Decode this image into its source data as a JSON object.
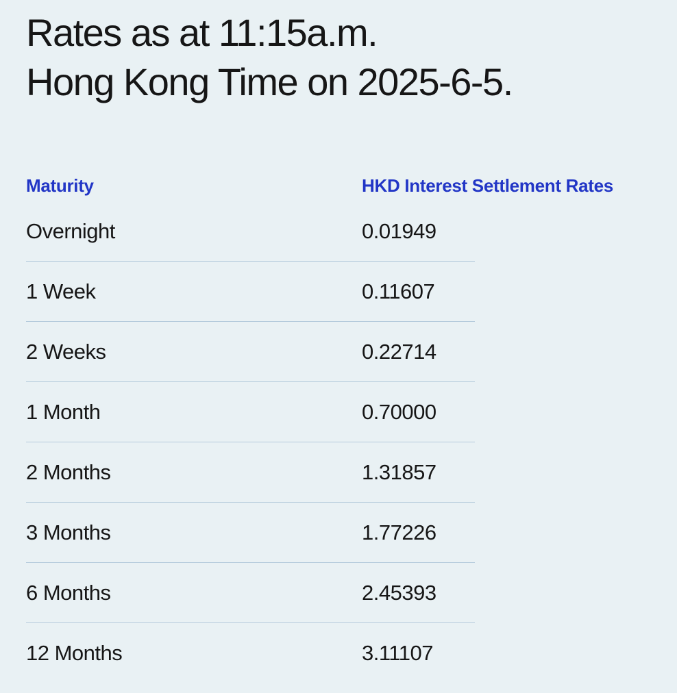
{
  "page": {
    "title": {
      "line1": "Rates as at 11:15a.m.",
      "line2": "Hong Kong Time on 2025-6-5."
    }
  },
  "table": {
    "columns": {
      "maturity": "Maturity",
      "rate": "HKD Interest Settlement Rates"
    },
    "rows": [
      {
        "maturity": "Overnight",
        "rate": "0.01949"
      },
      {
        "maturity": "1 Week",
        "rate": "0.11607"
      },
      {
        "maturity": "2 Weeks",
        "rate": "0.22714"
      },
      {
        "maturity": "1 Month",
        "rate": "0.70000"
      },
      {
        "maturity": "2 Months",
        "rate": "1.31857"
      },
      {
        "maturity": "3 Months",
        "rate": "1.77226"
      },
      {
        "maturity": "6 Months",
        "rate": "2.45393"
      },
      {
        "maturity": "12 Months",
        "rate": "3.11107"
      }
    ]
  },
  "colors": {
    "background": "#e9f1f4",
    "heading_blue": "#2236c6",
    "text": "#161616",
    "divider": "#b5cbdc"
  }
}
